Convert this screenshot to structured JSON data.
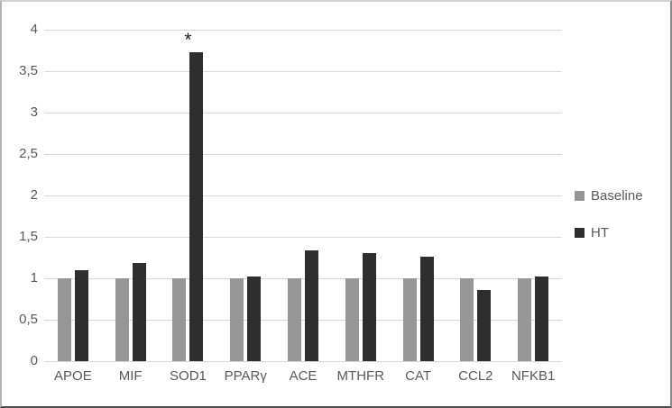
{
  "chart_data": {
    "type": "bar",
    "title": "",
    "xlabel": "",
    "ylabel": "",
    "categories": [
      "APOE",
      "MIF",
      "SOD1",
      "PPARγ",
      "ACE",
      "MTHFR",
      "CAT",
      "CCL2",
      "NFKB1"
    ],
    "series": [
      {
        "name": "Baseline",
        "color": "#969696",
        "values": [
          1.0,
          1.0,
          1.0,
          1.0,
          1.0,
          1.0,
          1.0,
          1.0,
          1.0
        ]
      },
      {
        "name": "HT",
        "color": "#2e2e2e",
        "values": [
          1.1,
          1.19,
          3.73,
          1.02,
          1.34,
          1.3,
          1.26,
          0.86,
          1.02
        ]
      }
    ],
    "ylim": [
      0,
      4
    ],
    "ytick_step": 0.5,
    "ytick_labels_top_to_bottom": [
      "4",
      "3,5",
      "3",
      "2,5",
      "2",
      "1,5",
      "1",
      "0,5",
      "0"
    ],
    "decimal_separator": ",",
    "grid": true,
    "gridline_color": "#d9d9d9",
    "legend_position": "right",
    "annotations": [
      {
        "text": "*",
        "category": "SOD1",
        "series": "HT"
      }
    ]
  },
  "colors": {
    "background": "#ffffff",
    "axis_text": "#595959",
    "gridline": "#d9d9d9",
    "baseline_bar": "#969696",
    "ht_bar": "#2e2e2e",
    "annotation": "#1f1f1f"
  }
}
